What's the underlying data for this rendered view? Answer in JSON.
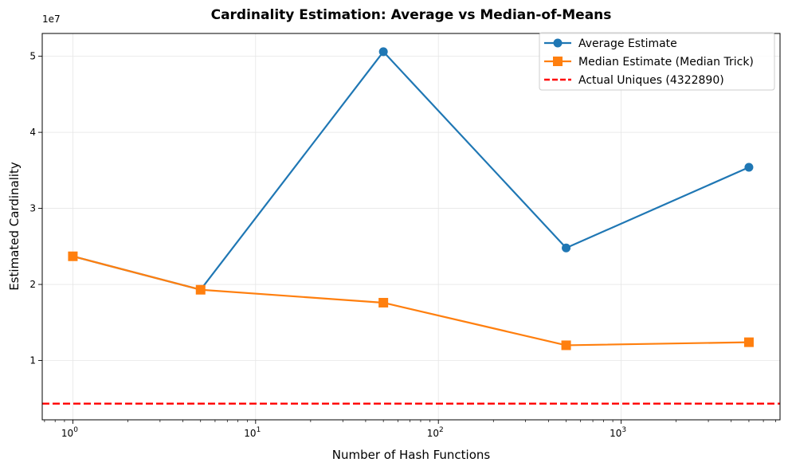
{
  "chart_data": {
    "type": "line",
    "title": "Cardinality Estimation: Average vs Median-of-Means",
    "xlabel": "Number of Hash Functions",
    "ylabel": "Estimated Cardinality",
    "x_scale": "log",
    "x": [
      1,
      5,
      50,
      500,
      5000
    ],
    "x_ticks": [
      {
        "value": 1,
        "base": "10",
        "exp": "0"
      },
      {
        "value": 10,
        "base": "10",
        "exp": "1"
      },
      {
        "value": 100,
        "base": "10",
        "exp": "2"
      },
      {
        "value": 1000,
        "base": "10",
        "exp": "3"
      }
    ],
    "xlim": [
      0.68,
      7400
    ],
    "y_multiplier": "1e7",
    "y_ticks": [
      1,
      2,
      3,
      4,
      5
    ],
    "ylim": [
      0.22,
      5.3
    ],
    "grid": true,
    "legend_position": "top-right",
    "series": [
      {
        "name": "Average Estimate",
        "color": "#1f77b4",
        "marker": "circle",
        "values": [
          2.37,
          1.93,
          5.06,
          2.48,
          3.54
        ]
      },
      {
        "name": "Median Estimate (Median Trick)",
        "color": "#ff7f0e",
        "marker": "square",
        "values": [
          2.37,
          1.93,
          1.76,
          1.2,
          1.24
        ]
      }
    ],
    "reference_lines": [
      {
        "name": "Actual Uniques (4322890)",
        "color": "#ff0000",
        "style": "dashed",
        "value": 0.432289
      }
    ]
  }
}
